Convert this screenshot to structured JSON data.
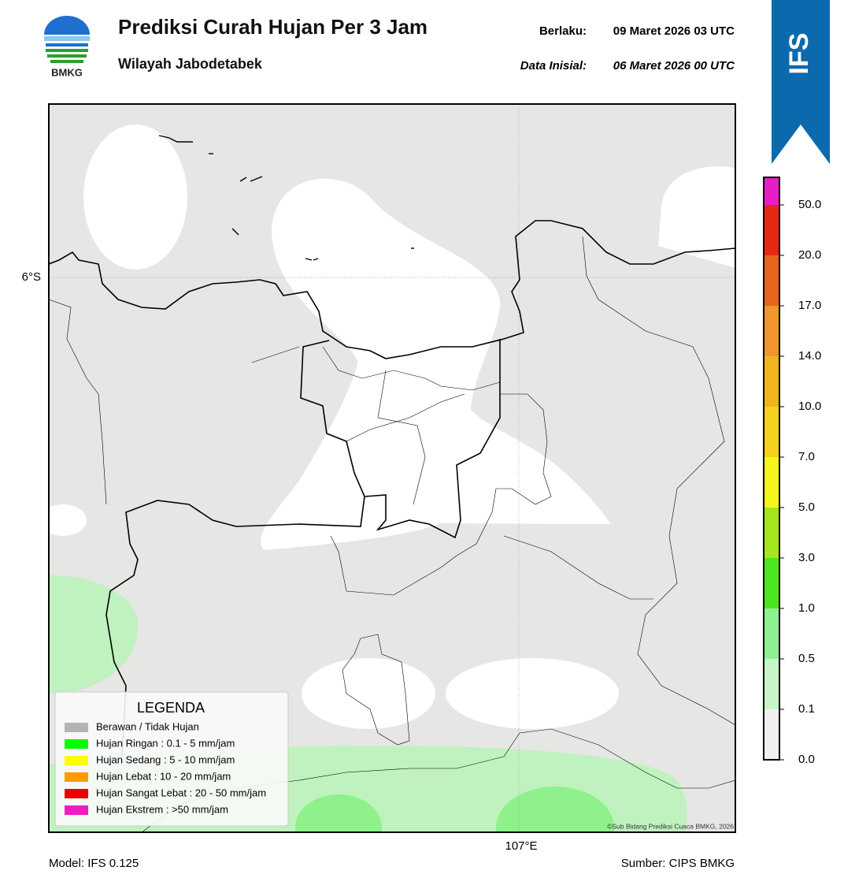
{
  "header": {
    "logo_text": "BMKG",
    "title": "Prediksi Curah Hujan Per 3 Jam",
    "subtitle": "Wilayah Jabodetabek",
    "valid_label": "Berlaku:",
    "valid_value": "09 Maret 2026 03 UTC",
    "init_label": "Data Inisial:",
    "init_value": "06 Maret 2026 00 UTC",
    "badge": "IFS"
  },
  "map": {
    "lat_label": "6°S",
    "lon_label": "107°E",
    "copyright": "©Sub Bidang Prediksi Cuaca BMKG, 2026"
  },
  "legend": {
    "title": "LEGENDA",
    "items": [
      {
        "label": "Berawan / Tidak Hujan",
        "color": "#b4b4b4"
      },
      {
        "label": "Hujan Ringan : 0.1 - 5 mm/jam",
        "color": "#00ff00"
      },
      {
        "label": "Hujan Sedang : 5 - 10 mm/jam",
        "color": "#ffff00"
      },
      {
        "label": "Hujan Lebat : 10 - 20 mm/jam",
        "color": "#ff9900"
      },
      {
        "label": "Hujan Sangat Lebat : 20 - 50 mm/jam",
        "color": "#ee0000"
      },
      {
        "label": "Hujan Ekstrem : >50 mm/jam",
        "color": "#ee1cc0"
      }
    ]
  },
  "colorbar": {
    "ticks": [
      {
        "value": 0,
        "label": "0.0"
      },
      {
        "value": 0.1,
        "label": "0.1"
      },
      {
        "value": 0.5,
        "label": "0.5"
      },
      {
        "value": 1,
        "label": "1.0"
      },
      {
        "value": 3,
        "label": "3.0"
      },
      {
        "value": 5,
        "label": "5.0"
      },
      {
        "value": 7,
        "label": "7.0"
      },
      {
        "value": 10,
        "label": "10.0"
      },
      {
        "value": 14,
        "label": "14.0"
      },
      {
        "value": 17,
        "label": "17.0"
      },
      {
        "value": 20,
        "label": "20.0"
      },
      {
        "value": 50,
        "label": "50.0"
      }
    ],
    "colors": [
      "#f0f0f0",
      "#c8f5c8",
      "#8ff08f",
      "#4ce61e",
      "#a5e61e",
      "#f5f51e",
      "#f5d21e",
      "#f0b41e",
      "#f0962a",
      "#e8641e",
      "#e62814",
      "#e61ec8"
    ]
  },
  "footer": {
    "model": "Model: IFS 0.125",
    "source": "Sumber: CIPS BMKG"
  }
}
